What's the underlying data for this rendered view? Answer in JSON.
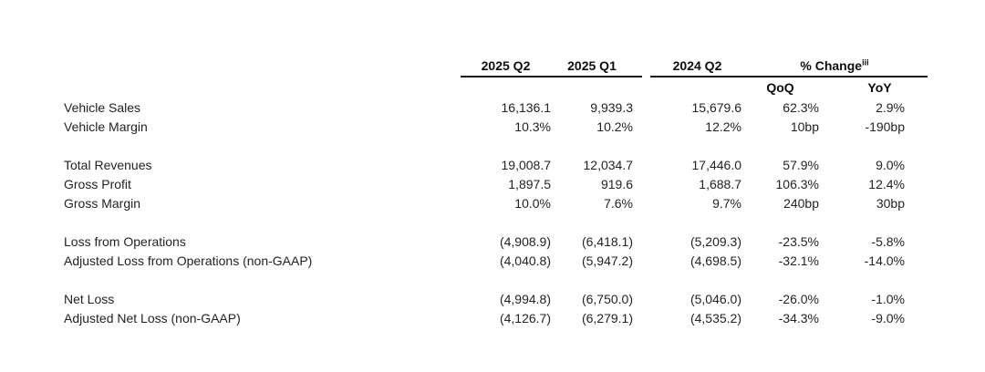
{
  "page": {
    "background": "#ffffff",
    "colors": {
      "text": "#232323",
      "header_text": "#0d0d0d",
      "rule": "#1a1a1a"
    }
  },
  "table": {
    "header": {
      "col_2025_q2": "2025 Q2",
      "col_2025_q1": "2025 Q1",
      "col_2024_q2": "2024 Q2",
      "change_label": "% Change",
      "change_superscript": "iii",
      "sub_qoq": "QoQ",
      "sub_yoy": "YoY"
    },
    "rows": [
      {
        "label": "Vehicle Sales",
        "v_2025_q2": "16,136.1",
        "v_2025_q1": "9,939.3",
        "v_2024_q2": "15,679.6",
        "qoq": "62.3%",
        "yoy": "2.9%"
      },
      {
        "label": "Vehicle Margin",
        "v_2025_q2": "10.3%",
        "v_2025_q1": "10.2%",
        "v_2024_q2": "12.2%",
        "qoq": "10bp",
        "yoy": "-190bp"
      },
      {
        "label": "Total Revenues",
        "v_2025_q2": "19,008.7",
        "v_2025_q1": "12,034.7",
        "v_2024_q2": "17,446.0",
        "qoq": "57.9%",
        "yoy": "9.0%"
      },
      {
        "label": "Gross Profit",
        "v_2025_q2": "1,897.5",
        "v_2025_q1": "919.6",
        "v_2024_q2": "1,688.7",
        "qoq": "106.3%",
        "yoy": "12.4%"
      },
      {
        "label": "Gross Margin",
        "v_2025_q2": "10.0%",
        "v_2025_q1": "7.6%",
        "v_2024_q2": "9.7%",
        "qoq": "240bp",
        "yoy": "30bp"
      },
      {
        "label": "Loss from Operations",
        "v_2025_q2": "(4,908.9)",
        "v_2025_q1": "(6,418.1)",
        "v_2024_q2": "(5,209.3)",
        "qoq": "-23.5%",
        "yoy": "-5.8%"
      },
      {
        "label": "Adjusted Loss from Operations (non-GAAP)",
        "v_2025_q2": "(4,040.8)",
        "v_2025_q1": "(5,947.2)",
        "v_2024_q2": "(4,698.5)",
        "qoq": "-32.1%",
        "yoy": "-14.0%"
      },
      {
        "label": "Net Loss",
        "v_2025_q2": "(4,994.8)",
        "v_2025_q1": "(6,750.0)",
        "v_2024_q2": "(5,046.0)",
        "qoq": "-26.0%",
        "yoy": "-1.0%"
      },
      {
        "label": "Adjusted Net Loss (non-GAAP)",
        "v_2025_q2": "(4,126.7)",
        "v_2025_q1": "(6,279.1)",
        "v_2024_q2": "(4,535.2)",
        "qoq": "-34.3%",
        "yoy": "-9.0%"
      }
    ]
  }
}
